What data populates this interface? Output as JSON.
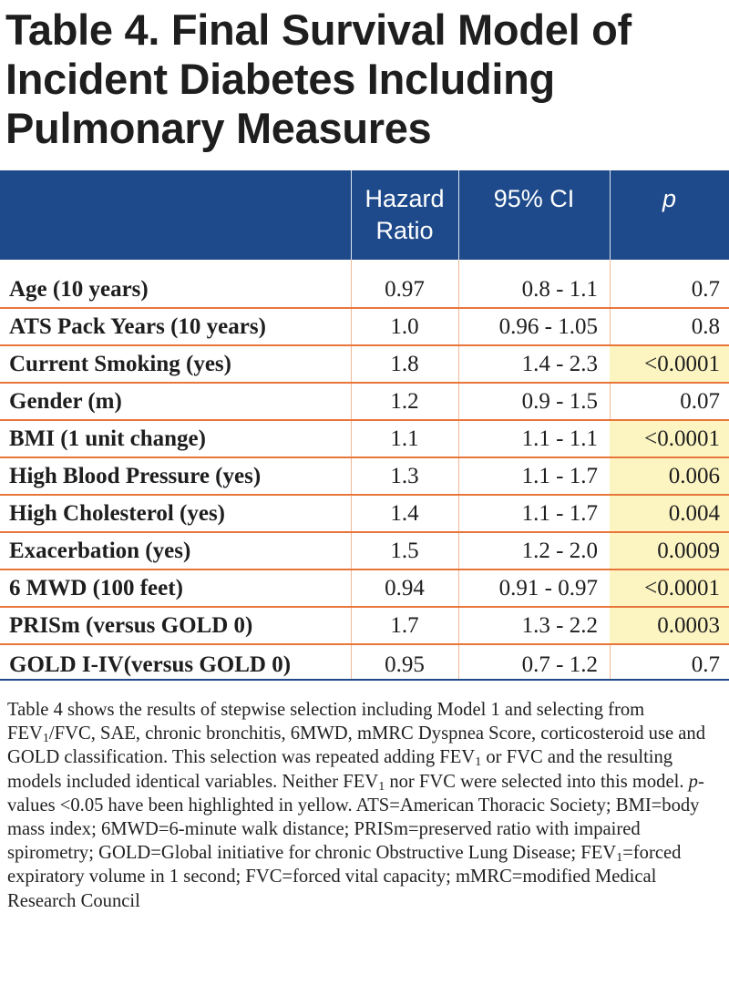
{
  "title": "Table 4. Final Survival Model of Incident Diabetes Including Pulmonary Measures",
  "columns": {
    "hazard_ratio": "Hazard Ratio",
    "ci": "95% CI",
    "p": "p"
  },
  "rows": [
    {
      "label": "Age (10 years)",
      "hr": "0.97",
      "ci": "0.8 - 1.1",
      "p": "0.7",
      "highlight": false
    },
    {
      "label": "ATS Pack Years (10 years)",
      "hr": "1.0",
      "ci": "0.96 - 1.05",
      "p": "0.8",
      "highlight": false
    },
    {
      "label": "Current Smoking (yes)",
      "hr": "1.8",
      "ci": "1.4 - 2.3",
      "p": "<0.0001",
      "highlight": true
    },
    {
      "label": "Gender (m)",
      "hr": "1.2",
      "ci": "0.9 - 1.5",
      "p": "0.07",
      "highlight": false
    },
    {
      "label": "BMI (1 unit change)",
      "hr": "1.1",
      "ci": "1.1 - 1.1",
      "p": "<0.0001",
      "highlight": true
    },
    {
      "label": "High Blood Pressure (yes)",
      "hr": "1.3",
      "ci": "1.1 - 1.7",
      "p": "0.006",
      "highlight": true
    },
    {
      "label": "High Cholesterol (yes)",
      "hr": "1.4",
      "ci": "1.1 - 1.7",
      "p": "0.004",
      "highlight": true
    },
    {
      "label": "Exacerbation (yes)",
      "hr": "1.5",
      "ci": "1.2 - 2.0",
      "p": "0.0009",
      "highlight": true
    },
    {
      "label": "6 MWD (100 feet)",
      "hr": "0.94",
      "ci": "0.91 - 0.97",
      "p": "<0.0001",
      "highlight": true
    },
    {
      "label": "PRISm (versus GOLD 0)",
      "hr": "1.7",
      "ci": "1.3 - 2.2",
      "p": "0.0003",
      "highlight": true
    },
    {
      "label": "GOLD I-IV(versus GOLD 0)",
      "hr": "0.95",
      "ci": "0.7 - 1.2",
      "p": "0.7",
      "highlight": false
    }
  ],
  "footnote": {
    "t1": "Table 4 shows the results of stepwise selection including Model 1 and selecting from FEV",
    "t2": "/FVC, SAE, chronic bronchitis, 6MWD, mMRC Dyspnea Score, corticosteroid use and GOLD classification. This selection was repeated adding FEV",
    "t3": " or FVC and the resulting models included identical variables. Neither FEV",
    "t4": " nor FVC were selected into this model. ",
    "t5": "p",
    "t6": "-values <0.05 have been highlighted in yellow. ATS=American Thoracic Society; BMI=body mass index; 6MWD=6-minute walk distance; PRISm=preserved ratio with impaired spirometry; GOLD=Global initiative for chronic Obstructive Lung Disease; FEV",
    "t7": "=forced expiratory volume in 1 second; FVC=forced vital capacity; mMRC=modified Medical Research Council",
    "sub": "1"
  },
  "colors": {
    "header_bg": "#1e4a8b",
    "row_rule": "#e8763b",
    "highlight": "#fcf5c2"
  }
}
